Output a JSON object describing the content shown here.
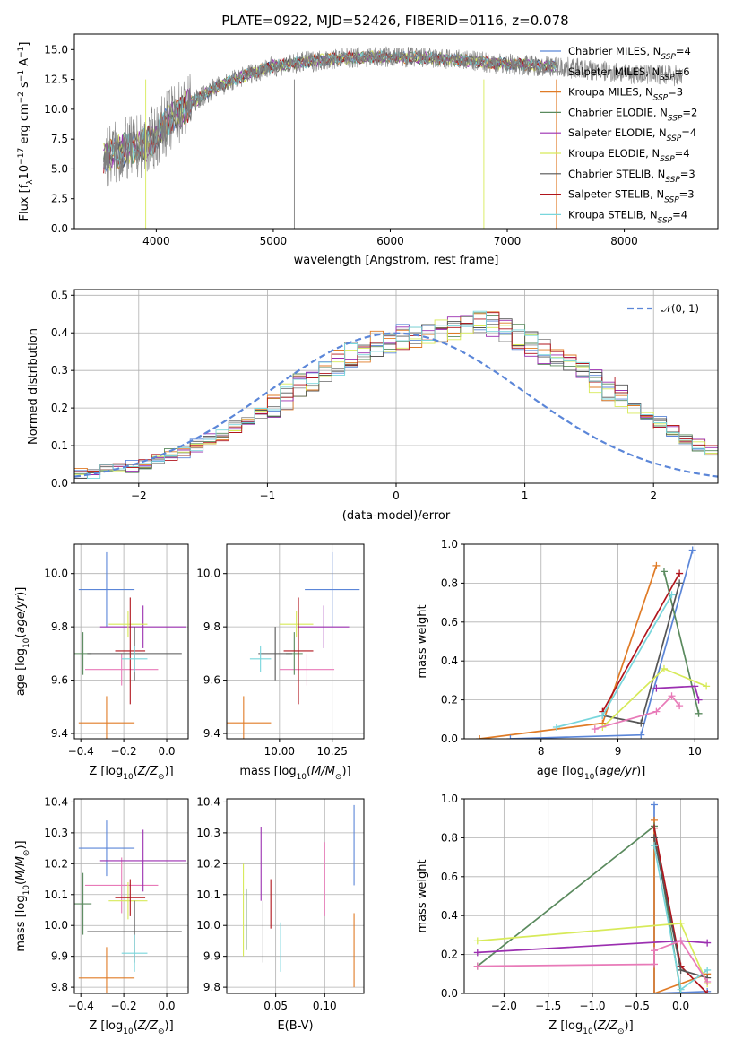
{
  "figure_title": "PLATE=0922, MJD=52426, FIBERID=0116, z=0.078",
  "colors": {
    "Chabrier MILES": "#5b86d8",
    "Salpeter MILES": "#8c8c8c",
    "Kroupa MILES": "#e07b26",
    "Chabrier ELODIE": "#5a8a5e",
    "Salpeter ELODIE": "#9b2fb0",
    "Kroupa ELODIE": "#d7ea59",
    "Chabrier STELIB": "#555555",
    "Salpeter STELIB": "#b0141c",
    "Kroupa STELIB": "#78d6dc",
    "pink": "#e87ab8",
    "data": "#7f7f7f",
    "gaussian": "#5b86d8"
  },
  "chart_data": [
    {
      "type": "line",
      "xlabel": "wavelength [Angstrom, rest frame]",
      "ylabel": "Flux [f",
      "ylabel_parts": [
        "Flux [f",
        "λ",
        "10",
        "−17",
        " erg cm",
        "−2",
        " s",
        "−1",
        " A",
        "−1",
        "]"
      ],
      "xlim": [
        3300,
        8800
      ],
      "ylim": [
        0,
        16.3
      ],
      "xticks": [
        4000,
        5000,
        6000,
        7000,
        8000
      ],
      "yticks": [
        "0.0",
        "2.5",
        "5.0",
        "7.5",
        "10.0",
        "12.5",
        "15.0"
      ],
      "legend": [
        {
          "name": "Chabrier MILES",
          "nssp": "4"
        },
        {
          "name": "Salpeter MILES",
          "nssp": "6"
        },
        {
          "name": "Kroupa MILES",
          "nssp": "3"
        },
        {
          "name": "Chabrier ELODIE",
          "nssp": "2"
        },
        {
          "name": "Salpeter ELODIE",
          "nssp": "4"
        },
        {
          "name": "Kroupa ELODIE",
          "nssp": "4"
        },
        {
          "name": "Chabrier STELIB",
          "nssp": "3"
        },
        {
          "name": "Salpeter STELIB",
          "nssp": "3"
        },
        {
          "name": "Kroupa STELIB",
          "nssp": "4"
        }
      ],
      "nssp_label": "N",
      "nssp_sub": "SSP",
      "continuum": [
        [
          3550,
          6.0
        ],
        [
          3700,
          6.5
        ],
        [
          3900,
          7.0
        ],
        [
          4000,
          7.8
        ],
        [
          4100,
          9.0
        ],
        [
          4300,
          10.5
        ],
        [
          4500,
          11.8
        ],
        [
          4800,
          13.0
        ],
        [
          5000,
          13.6
        ],
        [
          5300,
          14.0
        ],
        [
          5600,
          14.3
        ],
        [
          6000,
          14.4
        ],
        [
          6300,
          14.3
        ],
        [
          6600,
          14.1
        ],
        [
          7000,
          13.8
        ],
        [
          7400,
          13.6
        ],
        [
          7800,
          13.2
        ],
        [
          8200,
          12.9
        ],
        [
          8500,
          12.8
        ]
      ]
    },
    {
      "type": "line",
      "xlabel": "(data-model)/error",
      "ylabel": "Normed distribution",
      "xlim": [
        -2.5,
        2.5
      ],
      "ylim": [
        0,
        0.515
      ],
      "xticks": [
        "−2",
        "−1",
        "0",
        "1",
        "2"
      ],
      "yticks": [
        "0.0",
        "0.1",
        "0.2",
        "0.3",
        "0.4",
        "0.5"
      ],
      "legend": "𝒩(0, 1)",
      "bin_width": 0.1,
      "bin_start": -2.5,
      "hist_base": [
        0.025,
        0.03,
        0.035,
        0.04,
        0.045,
        0.055,
        0.065,
        0.075,
        0.085,
        0.1,
        0.115,
        0.13,
        0.15,
        0.17,
        0.19,
        0.21,
        0.23,
        0.26,
        0.28,
        0.3,
        0.32,
        0.34,
        0.355,
        0.37,
        0.38,
        0.39,
        0.395,
        0.4,
        0.405,
        0.41,
        0.42,
        0.43,
        0.425,
        0.41,
        0.39,
        0.37,
        0.35,
        0.33,
        0.31,
        0.29,
        0.27,
        0.25,
        0.23,
        0.2,
        0.18,
        0.16,
        0.14,
        0.12,
        0.1,
        0.085,
        0.07,
        0.06,
        0.05,
        0.045,
        0.04,
        0.035,
        0.03,
        0.025
      ]
    },
    {
      "type": "scatter",
      "xlabel": "Z [log",
      "ylabel": "age  [log",
      "xlim": [
        -0.43,
        0.1
      ],
      "ylim": [
        9.38,
        10.11
      ],
      "xticks": [
        "−0.4",
        "−0.2",
        "0.0"
      ],
      "yticks": [
        "9.4",
        "9.6",
        "9.8",
        "10.0"
      ],
      "points": [
        {
          "c": "Chabrier MILES",
          "x": -0.28,
          "y": 9.94,
          "xe": 0.13,
          "ye": 0.14
        },
        {
          "c": "Kroupa MILES",
          "x": -0.28,
          "y": 9.44,
          "xe": 0.13,
          "ye": 0.1
        },
        {
          "c": "pink",
          "x": -0.21,
          "y": 9.64,
          "xe": 0.17,
          "ye": 0.06
        },
        {
          "c": "Chabrier ELODIE",
          "x": -0.39,
          "y": 9.7,
          "xe": 0.04,
          "ye": 0.08
        },
        {
          "c": "Salpeter ELODIE",
          "x": -0.11,
          "y": 9.8,
          "xe": 0.2,
          "ye": 0.08
        },
        {
          "c": "Kroupa ELODIE",
          "x": -0.18,
          "y": 9.81,
          "xe": 0.09,
          "ye": 0.05
        },
        {
          "c": "Chabrier STELIB",
          "x": -0.15,
          "y": 9.7,
          "xe": 0.22,
          "ye": 0.1
        },
        {
          "c": "Salpeter STELIB",
          "x": -0.17,
          "y": 9.71,
          "xe": 0.07,
          "ye": 0.2
        },
        {
          "c": "Kroupa STELIB",
          "x": -0.15,
          "y": 9.68,
          "xe": 0.06,
          "ye": 0.05
        }
      ]
    },
    {
      "type": "scatter",
      "xlabel": "mass [log",
      "ylabel": "",
      "xlim": [
        9.75,
        10.4
      ],
      "ylim": [
        9.38,
        10.11
      ],
      "xticks": [
        "10.00",
        "10.25"
      ],
      "yticks": [
        "9.4",
        "9.6",
        "9.8",
        "10.0"
      ],
      "points": [
        {
          "c": "Chabrier MILES",
          "x": 10.25,
          "y": 9.94,
          "xe": 0.13,
          "ye": 0.14
        },
        {
          "c": "Kroupa MILES",
          "x": 9.83,
          "y": 9.44,
          "xe": 0.13,
          "ye": 0.1
        },
        {
          "c": "pink",
          "x": 10.13,
          "y": 9.64,
          "xe": 0.13,
          "ye": 0.06
        },
        {
          "c": "Chabrier ELODIE",
          "x": 10.07,
          "y": 9.7,
          "xe": 0.04,
          "ye": 0.08
        },
        {
          "c": "Salpeter ELODIE",
          "x": 10.21,
          "y": 9.8,
          "xe": 0.12,
          "ye": 0.08
        },
        {
          "c": "Kroupa ELODIE",
          "x": 10.08,
          "y": 9.81,
          "xe": 0.08,
          "ye": 0.05
        },
        {
          "c": "Chabrier STELIB",
          "x": 9.98,
          "y": 9.7,
          "xe": 0.08,
          "ye": 0.1
        },
        {
          "c": "Salpeter STELIB",
          "x": 10.09,
          "y": 9.71,
          "xe": 0.07,
          "ye": 0.2
        },
        {
          "c": "Kroupa STELIB",
          "x": 9.91,
          "y": 9.68,
          "xe": 0.05,
          "ye": 0.05
        }
      ]
    },
    {
      "type": "line",
      "xlabel": "age  [log",
      "ylabel": "mass weight",
      "xlim": [
        7.0,
        10.3
      ],
      "ylim": [
        0,
        1.0
      ],
      "xticks": [
        "8",
        "9",
        "10"
      ],
      "yticks": [
        "0.0",
        "0.2",
        "0.4",
        "0.6",
        "0.8",
        "1.0"
      ],
      "series": [
        {
          "c": "Kroupa MILES",
          "pts": [
            [
              7.2,
              0.0
            ],
            [
              8.8,
              0.08
            ],
            [
              9.5,
              0.89
            ]
          ]
        },
        {
          "c": "Chabrier MILES",
          "pts": [
            [
              7.6,
              0.0
            ],
            [
              9.3,
              0.02
            ],
            [
              9.97,
              0.97
            ]
          ]
        },
        {
          "c": "Salpeter STELIB",
          "pts": [
            [
              8.8,
              0.14
            ],
            [
              9.8,
              0.85
            ]
          ]
        },
        {
          "c": "Chabrier ELODIE",
          "pts": [
            [
              9.6,
              0.86
            ],
            [
              10.05,
              0.13
            ]
          ]
        },
        {
          "c": "Chabrier STELIB",
          "pts": [
            [
              8.8,
              0.12
            ],
            [
              9.3,
              0.08
            ],
            [
              9.8,
              0.8
            ]
          ]
        },
        {
          "c": "Kroupa STELIB",
          "pts": [
            [
              8.2,
              0.06
            ],
            [
              8.8,
              0.12
            ],
            [
              9.7,
              0.74
            ]
          ]
        },
        {
          "c": "Kroupa ELODIE",
          "pts": [
            [
              8.8,
              0.06
            ],
            [
              9.6,
              0.36
            ],
            [
              10.15,
              0.27
            ]
          ]
        },
        {
          "c": "Salpeter ELODIE",
          "pts": [
            [
              9.5,
              0.26
            ],
            [
              10.0,
              0.27
            ],
            [
              10.05,
              0.2
            ]
          ]
        },
        {
          "c": "pink",
          "pts": [
            [
              8.7,
              0.05
            ],
            [
              9.5,
              0.14
            ],
            [
              9.7,
              0.22
            ],
            [
              9.8,
              0.17
            ]
          ]
        }
      ]
    },
    {
      "type": "scatter",
      "xlabel": "Z [log",
      "ylabel": "mass [log",
      "xlim": [
        -0.43,
        0.1
      ],
      "ylim": [
        9.78,
        10.41
      ],
      "xticks": [
        "−0.4",
        "−0.2",
        "0.0"
      ],
      "yticks": [
        "9.8",
        "9.9",
        "10.0",
        "10.1",
        "10.2",
        "10.3",
        "10.4"
      ],
      "points": [
        {
          "c": "Chabrier MILES",
          "x": -0.28,
          "y": 10.25,
          "xe": 0.13,
          "ye": 0.09
        },
        {
          "c": "Kroupa MILES",
          "x": -0.28,
          "y": 9.83,
          "xe": 0.13,
          "ye": 0.1
        },
        {
          "c": "pink",
          "x": -0.21,
          "y": 10.13,
          "xe": 0.17,
          "ye": 0.09
        },
        {
          "c": "Chabrier ELODIE",
          "x": -0.39,
          "y": 10.07,
          "xe": 0.04,
          "ye": 0.1
        },
        {
          "c": "Salpeter ELODIE",
          "x": -0.11,
          "y": 10.21,
          "xe": 0.2,
          "ye": 0.1
        },
        {
          "c": "Kroupa ELODIE",
          "x": -0.18,
          "y": 10.08,
          "xe": 0.09,
          "ye": 0.06
        },
        {
          "c": "Chabrier STELIB",
          "x": -0.15,
          "y": 9.98,
          "xe": 0.22,
          "ye": 0.1
        },
        {
          "c": "Salpeter STELIB",
          "x": -0.17,
          "y": 10.09,
          "xe": 0.07,
          "ye": 0.06
        },
        {
          "c": "Kroupa STELIB",
          "x": -0.15,
          "y": 9.91,
          "xe": 0.06,
          "ye": 0.06
        }
      ]
    },
    {
      "type": "scatter",
      "xlabel": "E(B-V)",
      "ylabel": "",
      "xlim": [
        0.0,
        0.14
      ],
      "ylim": [
        9.78,
        10.41
      ],
      "xticks": [
        "0.05",
        "0.10"
      ],
      "yticks": [
        "9.8",
        "9.9",
        "10.0",
        "10.1",
        "10.2",
        "10.3",
        "10.4"
      ],
      "points": [
        {
          "c": "Kroupa ELODIE",
          "x": 0.017,
          "y": 10.05,
          "xe": 0,
          "ye": 0.15
        },
        {
          "c": "Chabrier ELODIE",
          "x": 0.02,
          "y": 10.02,
          "xe": 0,
          "ye": 0.1
        },
        {
          "c": "Salpeter ELODIE",
          "x": 0.035,
          "y": 10.2,
          "xe": 0,
          "ye": 0.12
        },
        {
          "c": "Chabrier STELIB",
          "x": 0.037,
          "y": 9.98,
          "xe": 0,
          "ye": 0.1
        },
        {
          "c": "Salpeter STELIB",
          "x": 0.045,
          "y": 10.07,
          "xe": 0,
          "ye": 0.08
        },
        {
          "c": "Kroupa STELIB",
          "x": 0.055,
          "y": 9.93,
          "xe": 0,
          "ye": 0.08
        },
        {
          "c": "pink",
          "x": 0.1,
          "y": 10.15,
          "xe": 0,
          "ye": 0.12
        },
        {
          "c": "Chabrier MILES",
          "x": 0.13,
          "y": 10.26,
          "xe": 0,
          "ye": 0.13
        },
        {
          "c": "Kroupa MILES",
          "x": 0.13,
          "y": 9.92,
          "xe": 0,
          "ye": 0.12
        }
      ]
    },
    {
      "type": "line",
      "xlabel": "Z [log",
      "ylabel": "mass weight",
      "xlim": [
        -2.45,
        0.42
      ],
      "ylim": [
        0,
        1.0
      ],
      "xticks": [
        "−2.0",
        "−1.5",
        "−1.0",
        "−0.5",
        "0.0"
      ],
      "yticks": [
        "0.0",
        "0.2",
        "0.4",
        "0.6",
        "0.8",
        "1.0"
      ],
      "series": [
        {
          "c": "Chabrier MILES",
          "pts": [
            [
              -0.3,
              0.97
            ],
            [
              -0.3,
              0.0
            ],
            [
              0.3,
              0.01
            ]
          ]
        },
        {
          "c": "Kroupa MILES",
          "pts": [
            [
              -0.3,
              0.89
            ],
            [
              -0.3,
              0.0
            ],
            [
              0.3,
              0.1
            ]
          ]
        },
        {
          "c": "Chabrier ELODIE",
          "pts": [
            [
              -2.3,
              0.14
            ],
            [
              -0.3,
              0.86
            ],
            [
              0.0,
              0.0
            ]
          ]
        },
        {
          "c": "Salpeter STELIB",
          "pts": [
            [
              -0.3,
              0.85
            ],
            [
              0.0,
              0.14
            ],
            [
              0.3,
              0.0
            ]
          ]
        },
        {
          "c": "Chabrier STELIB",
          "pts": [
            [
              -0.3,
              0.8
            ],
            [
              0.0,
              0.12
            ],
            [
              0.3,
              0.08
            ]
          ]
        },
        {
          "c": "Kroupa STELIB",
          "pts": [
            [
              -0.3,
              0.76
            ],
            [
              0.0,
              0.02
            ],
            [
              0.3,
              0.12
            ]
          ]
        },
        {
          "c": "Kroupa ELODIE",
          "pts": [
            [
              -2.3,
              0.27
            ],
            [
              0.0,
              0.36
            ],
            [
              0.3,
              0.05
            ]
          ]
        },
        {
          "c": "Salpeter ELODIE",
          "pts": [
            [
              -2.3,
              0.21
            ],
            [
              0.0,
              0.27
            ],
            [
              0.3,
              0.26
            ]
          ]
        },
        {
          "c": "pink",
          "pts": [
            [
              -2.3,
              0.14
            ],
            [
              -0.3,
              0.15
            ],
            [
              -0.3,
              0.22
            ],
            [
              0.0,
              0.27
            ],
            [
              0.3,
              0.06
            ]
          ]
        }
      ]
    }
  ]
}
